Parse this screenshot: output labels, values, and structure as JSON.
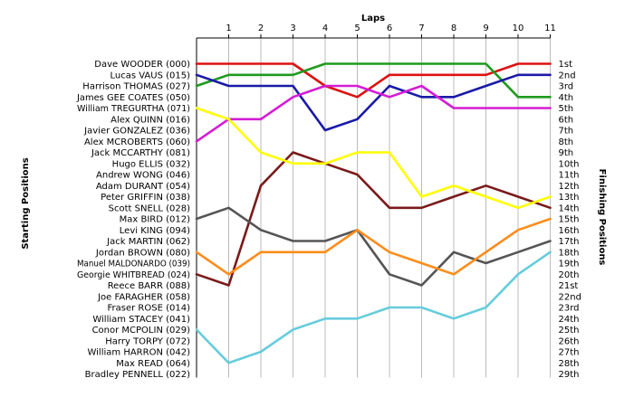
{
  "chart_data": {
    "type": "line",
    "title": "",
    "xlabel": "Laps",
    "ylabel_left": "Starting Positions",
    "ylabel_right": "Finishing Positions",
    "x": [
      0,
      1,
      2,
      3,
      4,
      5,
      6,
      7,
      8,
      9,
      10,
      11
    ],
    "x_tick_labels": [
      "1",
      "2",
      "3",
      "4",
      "5",
      "6",
      "7",
      "8",
      "9",
      "10",
      "11"
    ],
    "grid": "vertical",
    "y_axis": "position (1 = top)",
    "y_range": [
      1,
      29
    ],
    "start_labels": [
      "Dave WOODER (000)",
      "Lucas VAUS (015)",
      "Harrison THOMAS (027)",
      "James GEE COATES (050)",
      "William TREGURTHA (071)",
      "Alex QUINN (016)",
      "Javier GONZALEZ (036)",
      "Alex MCROBERTS (060)",
      "Jack MCCARTHY (081)",
      "Hugo ELLIS (032)",
      "Andrew WONG (046)",
      "Adam DURANT (054)",
      "Peter GRIFFIN (038)",
      "Scott SNELL (028)",
      "Max BIRD (012)",
      "Levi KING (094)",
      "Jack MARTIN (062)",
      "Jordan BROWN (080)",
      "Manuel MALDONARDO (039)",
      "Georgie WHITBREAD (024)",
      "Reece BARR (088)",
      "Joe FARAGHER (058)",
      "Fraser ROSE (014)",
      "William STACEY (041)",
      "Conor MCPOLIN (029)",
      "Harry TORPY (072)",
      "William HARRON (042)",
      "Max READ (064)",
      "Bradley PENNELL (022)"
    ],
    "finish_labels": [
      "1st",
      "2nd",
      "3rd",
      "4th",
      "5th",
      "6th",
      "7th",
      "8th",
      "9th",
      "10th",
      "11th",
      "12th",
      "13th",
      "14th",
      "15th",
      "16th",
      "17th",
      "18th",
      "19th",
      "20th",
      "21st",
      "22nd",
      "23rd",
      "24th",
      "25th",
      "26th",
      "27th",
      "28th",
      "29th"
    ],
    "series": [
      {
        "color": "#dd1111",
        "values": [
          1,
          1,
          1,
          1,
          3,
          4,
          2,
          2,
          2,
          2,
          1,
          1
        ]
      },
      {
        "color": "#1e9a1e",
        "values": [
          3,
          2,
          2,
          2,
          1,
          1,
          1,
          1,
          1,
          1,
          4,
          4
        ]
      },
      {
        "color": "#1a1aa8",
        "values": [
          2,
          3,
          3,
          3,
          7,
          6,
          3,
          4,
          4,
          3,
          2,
          2
        ]
      },
      {
        "color": "#d41cd4",
        "values": [
          8,
          6,
          6,
          4,
          3,
          3,
          4,
          3,
          5,
          5,
          5,
          5
        ]
      },
      {
        "color": "#7a1a1a",
        "values": [
          20,
          21,
          12,
          9,
          10,
          11,
          14,
          14,
          13,
          12,
          13,
          14
        ]
      },
      {
        "color": "#555555",
        "values": [
          15,
          14,
          16,
          17,
          17,
          16,
          20,
          21,
          18,
          19,
          18,
          17
        ]
      },
      {
        "color": "#ffff00",
        "values": [
          5,
          6,
          9,
          10,
          10,
          9,
          9,
          13,
          12,
          13,
          14,
          13
        ]
      },
      {
        "color": "#ff8c1a",
        "values": [
          18,
          20,
          18,
          18,
          18,
          16,
          18,
          19,
          20,
          18,
          16,
          15
        ]
      },
      {
        "color": "#66ccdd",
        "values": [
          25,
          28,
          27,
          25,
          24,
          24,
          23,
          23,
          24,
          23,
          20,
          18
        ]
      }
    ]
  },
  "names_to_fit": "Dave WOODER (000)"
}
